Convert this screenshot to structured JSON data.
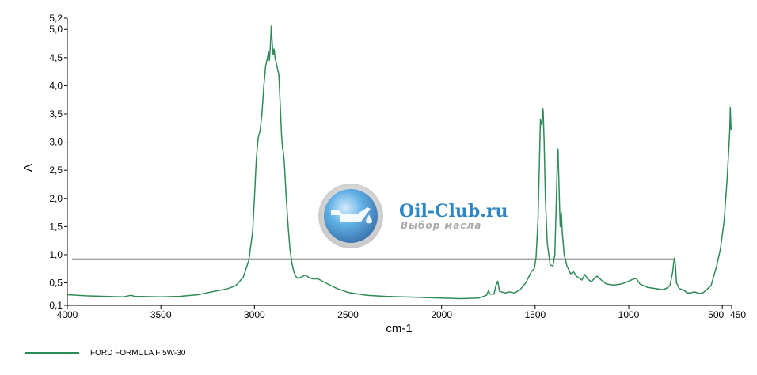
{
  "chart_data": {
    "type": "line",
    "title": "",
    "xlabel": "cm-1",
    "ylabel": "A",
    "xlim": [
      4000,
      450
    ],
    "ylim": [
      0.1,
      5.2
    ],
    "x_ticks": [
      4000,
      3500,
      3000,
      2500,
      2000,
      1500,
      1000,
      500,
      450
    ],
    "x_tick_labels": [
      "4000",
      "3500",
      "3000",
      "2500",
      "2000",
      "1500",
      "1000",
      "500",
      "450"
    ],
    "y_ticks": [
      0.1,
      0.5,
      1.0,
      1.5,
      2.0,
      2.5,
      3.0,
      3.5,
      4.0,
      4.5,
      5.0,
      5.2
    ],
    "y_tick_labels": [
      "0,1",
      "0,5",
      "1,0",
      "1,5",
      "2,0",
      "2,5",
      "3,0",
      "3,5",
      "4,0",
      "4,5",
      "5,0",
      "5,2"
    ],
    "grid": false,
    "legend_position": "bottom-left",
    "reference_line": {
      "y": 0.92,
      "x_from": 3975,
      "x_to": 750,
      "color": "#000000"
    },
    "series": [
      {
        "name": "FORD FORMULA F 5W-30",
        "color": "#2e8b57",
        "points": [
          [
            4000,
            0.29
          ],
          [
            3900,
            0.27
          ],
          [
            3800,
            0.26
          ],
          [
            3700,
            0.25
          ],
          [
            3660,
            0.28
          ],
          [
            3640,
            0.26
          ],
          [
            3500,
            0.25
          ],
          [
            3400,
            0.26
          ],
          [
            3300,
            0.29
          ],
          [
            3200,
            0.36
          ],
          [
            3150,
            0.39
          ],
          [
            3100,
            0.45
          ],
          [
            3060,
            0.6
          ],
          [
            3030,
            0.9
          ],
          [
            3010,
            1.4
          ],
          [
            3000,
            2.0
          ],
          [
            2990,
            2.7
          ],
          [
            2980,
            3.08
          ],
          [
            2970,
            3.2
          ],
          [
            2960,
            3.5
          ],
          [
            2950,
            4.0
          ],
          [
            2940,
            4.35
          ],
          [
            2930,
            4.5
          ],
          [
            2925,
            4.6
          ],
          [
            2920,
            4.45
          ],
          [
            2915,
            4.7
          ],
          [
            2910,
            5.06
          ],
          [
            2905,
            4.75
          ],
          [
            2900,
            4.55
          ],
          [
            2895,
            4.65
          ],
          [
            2890,
            4.5
          ],
          [
            2880,
            4.35
          ],
          [
            2870,
            4.2
          ],
          [
            2860,
            3.5
          ],
          [
            2855,
            3.1
          ],
          [
            2850,
            2.9
          ],
          [
            2845,
            2.8
          ],
          [
            2840,
            2.6
          ],
          [
            2830,
            2.0
          ],
          [
            2820,
            1.5
          ],
          [
            2810,
            1.1
          ],
          [
            2800,
            0.85
          ],
          [
            2790,
            0.7
          ],
          [
            2780,
            0.62
          ],
          [
            2770,
            0.58
          ],
          [
            2750,
            0.6
          ],
          [
            2730,
            0.64
          ],
          [
            2710,
            0.6
          ],
          [
            2690,
            0.57
          ],
          [
            2660,
            0.57
          ],
          [
            2620,
            0.5
          ],
          [
            2560,
            0.4
          ],
          [
            2500,
            0.33
          ],
          [
            2400,
            0.28
          ],
          [
            2300,
            0.26
          ],
          [
            2200,
            0.25
          ],
          [
            2100,
            0.24
          ],
          [
            2000,
            0.23
          ],
          [
            1900,
            0.22
          ],
          [
            1800,
            0.23
          ],
          [
            1760,
            0.28
          ],
          [
            1750,
            0.36
          ],
          [
            1740,
            0.3
          ],
          [
            1720,
            0.3
          ],
          [
            1710,
            0.45
          ],
          [
            1700,
            0.53
          ],
          [
            1690,
            0.35
          ],
          [
            1660,
            0.32
          ],
          [
            1640,
            0.34
          ],
          [
            1610,
            0.32
          ],
          [
            1580,
            0.38
          ],
          [
            1550,
            0.5
          ],
          [
            1520,
            0.7
          ],
          [
            1505,
            0.75
          ],
          [
            1495,
            0.95
          ],
          [
            1485,
            1.6
          ],
          [
            1478,
            2.5
          ],
          [
            1472,
            3.4
          ],
          [
            1468,
            3.35
          ],
          [
            1464,
            3.3
          ],
          [
            1460,
            3.6
          ],
          [
            1457,
            3.55
          ],
          [
            1452,
            3.0
          ],
          [
            1445,
            2.0
          ],
          [
            1435,
            1.2
          ],
          [
            1420,
            0.82
          ],
          [
            1405,
            0.8
          ],
          [
            1395,
            1.0
          ],
          [
            1388,
            1.8
          ],
          [
            1382,
            2.6
          ],
          [
            1378,
            2.88
          ],
          [
            1374,
            2.4
          ],
          [
            1370,
            1.9
          ],
          [
            1366,
            1.5
          ],
          [
            1360,
            1.75
          ],
          [
            1355,
            1.4
          ],
          [
            1345,
            1.0
          ],
          [
            1330,
            0.8
          ],
          [
            1310,
            0.66
          ],
          [
            1295,
            0.7
          ],
          [
            1280,
            0.62
          ],
          [
            1250,
            0.55
          ],
          [
            1235,
            0.65
          ],
          [
            1220,
            0.57
          ],
          [
            1200,
            0.52
          ],
          [
            1170,
            0.62
          ],
          [
            1150,
            0.56
          ],
          [
            1120,
            0.48
          ],
          [
            1080,
            0.46
          ],
          [
            1040,
            0.48
          ],
          [
            1000,
            0.53
          ],
          [
            980,
            0.56
          ],
          [
            960,
            0.58
          ],
          [
            940,
            0.48
          ],
          [
            900,
            0.42
          ],
          [
            860,
            0.4
          ],
          [
            820,
            0.38
          ],
          [
            800,
            0.4
          ],
          [
            780,
            0.45
          ],
          [
            765,
            0.7
          ],
          [
            760,
            0.85
          ],
          [
            755,
            0.94
          ],
          [
            750,
            0.8
          ],
          [
            745,
            0.5
          ],
          [
            730,
            0.4
          ],
          [
            700,
            0.36
          ],
          [
            690,
            0.32
          ],
          [
            670,
            0.32
          ],
          [
            650,
            0.34
          ],
          [
            620,
            0.31
          ],
          [
            600,
            0.33
          ],
          [
            560,
            0.45
          ],
          [
            530,
            0.8
          ],
          [
            510,
            1.1
          ],
          [
            490,
            1.6
          ],
          [
            475,
            2.3
          ],
          [
            465,
            2.9
          ],
          [
            460,
            3.2
          ],
          [
            457,
            3.62
          ],
          [
            455,
            3.4
          ],
          [
            453,
            3.22
          ]
        ]
      }
    ]
  },
  "watermark": {
    "brand": "Oil-Club.ru",
    "tagline": "Выбор масла"
  }
}
